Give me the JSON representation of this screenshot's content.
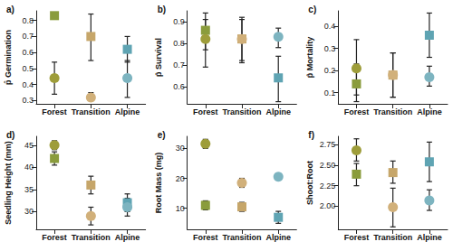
{
  "chart_data": [
    {
      "type": "scatter",
      "title": "a)",
      "y_label": "p̂ Germination",
      "categories": [
        "Forest",
        "Transition",
        "Alpine"
      ],
      "series": [
        {
          "marker": "square",
          "colors": [
            "#8a9c3c",
            "#c6a66a",
            "#5fa4b3"
          ],
          "values": [
            0.83,
            0.7,
            0.62
          ],
          "ci": [
            [
              0.82,
              0.84
            ],
            [
              0.55,
              0.84
            ],
            [
              0.54,
              0.7
            ]
          ]
        },
        {
          "marker": "circle",
          "colors": [
            "#9e9d3a",
            "#d1b07a",
            "#7db4c0"
          ],
          "values": [
            0.44,
            0.32,
            0.44
          ],
          "ci": [
            [
              0.34,
              0.54
            ],
            [
              0.3,
              0.35
            ],
            [
              0.32,
              0.55
            ]
          ]
        }
      ],
      "ylim": [
        0.28,
        0.86
      ],
      "yticks": [
        0.3,
        0.4,
        0.5,
        0.6,
        0.7,
        0.8
      ],
      "grid": false
    },
    {
      "type": "scatter",
      "title": "b)",
      "y_label": "p̂ Survival",
      "categories": [
        "Forest",
        "Transition",
        "Alpine"
      ],
      "series": [
        {
          "marker": "square",
          "colors": [
            "#8a9c3c",
            "#c6a66a",
            "#5fa4b3"
          ],
          "values": [
            0.86,
            0.82,
            0.64
          ],
          "ci": [
            [
              0.77,
              0.94
            ],
            [
              0.72,
              0.92
            ],
            [
              0.53,
              0.74
            ]
          ]
        },
        {
          "marker": "circle",
          "colors": [
            "#9e9d3a",
            "#d1b07a",
            "#7db4c0"
          ],
          "values": [
            0.82,
            0.82,
            0.83
          ],
          "ci": [
            [
              0.69,
              0.91
            ],
            [
              0.71,
              0.91
            ],
            [
              0.78,
              0.87
            ]
          ]
        }
      ],
      "ylim": [
        0.52,
        0.95
      ],
      "yticks": [
        0.6,
        0.7,
        0.8,
        0.9
      ],
      "grid": false
    },
    {
      "type": "scatter",
      "title": "c)",
      "y_label": "p̂ Mortality",
      "categories": [
        "Forest",
        "Transition",
        "Alpine"
      ],
      "series": [
        {
          "marker": "square",
          "colors": [
            "#8a9c3c",
            "#c6a66a",
            "#5fa4b3"
          ],
          "values": [
            0.14,
            0.18,
            0.36
          ],
          "ci": [
            [
              0.06,
              0.23
            ],
            [
              0.08,
              0.28
            ],
            [
              0.26,
              0.46
            ]
          ]
        },
        {
          "marker": "circle",
          "colors": [
            "#9e9d3a",
            "#d1b07a",
            "#7db4c0"
          ],
          "values": [
            0.21,
            0.18,
            0.17
          ],
          "ci": [
            [
              0.09,
              0.34
            ],
            [
              0.08,
              0.28
            ],
            [
              0.13,
              0.22
            ]
          ]
        }
      ],
      "ylim": [
        0.05,
        0.47
      ],
      "yticks": [
        0.1,
        0.2,
        0.3,
        0.4
      ],
      "grid": false
    },
    {
      "type": "scatter",
      "title": "d)",
      "y_label": "Seedling Height (mm)",
      "categories": [
        "Forest",
        "Transition",
        "Alpine"
      ],
      "series": [
        {
          "marker": "square",
          "colors": [
            "#8a9c3c",
            "#c6a66a",
            "#5fa4b3"
          ],
          "values": [
            42,
            36,
            32
          ],
          "ci": [
            [
              40.5,
              43.5
            ],
            [
              34,
              38
            ],
            [
              30,
              34
            ]
          ]
        },
        {
          "marker": "circle",
          "colors": [
            "#9e9d3a",
            "#d1b07a",
            "#7db4c0"
          ],
          "values": [
            45,
            29,
            31
          ],
          "ci": [
            [
              44,
              46
            ],
            [
              27,
              31
            ],
            [
              29,
              33
            ]
          ]
        }
      ],
      "ylim": [
        26,
        47
      ],
      "yticks": [
        30,
        35,
        40,
        45
      ],
      "grid": false
    },
    {
      "type": "scatter",
      "title": "e)",
      "y_label": "Root Mass (mg)",
      "categories": [
        "Forest",
        "Transition",
        "Alpine"
      ],
      "series": [
        {
          "marker": "square",
          "colors": [
            "#8a9c3c",
            "#c6a66a",
            "#5fa4b3"
          ],
          "values": [
            11,
            10.5,
            7
          ],
          "ci": [
            [
              9.5,
              12.5
            ],
            [
              9,
              12
            ],
            [
              5,
              9
            ]
          ]
        },
        {
          "marker": "circle",
          "colors": [
            "#9e9d3a",
            "#d1b07a",
            "#7db4c0"
          ],
          "values": [
            31.5,
            18.5,
            20.5
          ],
          "ci": [
            [
              30,
              33
            ],
            [
              17,
              20
            ],
            [
              19.5,
              21.5
            ]
          ]
        }
      ],
      "ylim": [
        3,
        34
      ],
      "yticks": [
        10,
        20,
        30
      ],
      "grid": false
    },
    {
      "type": "scatter",
      "title": "f)",
      "y_label": "Shoot:Root",
      "categories": [
        "Forest",
        "Transition",
        "Alpine"
      ],
      "series": [
        {
          "marker": "square",
          "colors": [
            "#8a9c3c",
            "#c6a66a",
            "#5fa4b3"
          ],
          "values": [
            2.39,
            2.41,
            2.54
          ],
          "ci": [
            [
              2.25,
              2.52
            ],
            [
              2.28,
              2.55
            ],
            [
              2.3,
              2.78
            ]
          ]
        },
        {
          "marker": "circle",
          "colors": [
            "#9e9d3a",
            "#d1b07a",
            "#7db4c0"
          ],
          "values": [
            2.68,
            1.99,
            2.07
          ],
          "ci": [
            [
              2.55,
              2.82
            ],
            [
              1.75,
              2.22
            ],
            [
              1.95,
              2.2
            ]
          ]
        }
      ],
      "ylim": [
        1.72,
        2.85
      ],
      "yticks": [
        {
          "value": 2,
          "label": "2.00"
        },
        {
          "value": 2.25,
          "label": "2.25"
        },
        {
          "value": 2.5,
          "label": "2.50"
        },
        {
          "value": 2.75,
          "label": "2.75"
        }
      ],
      "grid": false
    }
  ]
}
